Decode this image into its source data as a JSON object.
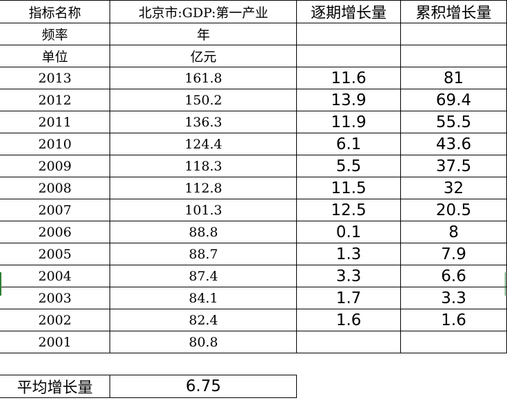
{
  "header": {
    "row1": [
      "指标名称",
      "北京市:GDP:第一产业",
      "逐期增长量",
      "累积增长量"
    ],
    "row2": [
      "频率",
      "年",
      "",
      ""
    ],
    "row3": [
      "单位",
      "亿元",
      "",
      ""
    ]
  },
  "rows": [
    {
      "year": "2013",
      "gdp": "161.8",
      "period": "11.6",
      "cumulative": "81"
    },
    {
      "year": "2012",
      "gdp": "150.2",
      "period": "13.9",
      "cumulative": "69.4"
    },
    {
      "year": "2011",
      "gdp": "136.3",
      "period": "11.9",
      "cumulative": "55.5"
    },
    {
      "year": "2010",
      "gdp": "124.4",
      "period": "6.1",
      "cumulative": "43.6"
    },
    {
      "year": "2009",
      "gdp": "118.3",
      "period": "5.5",
      "cumulative": "37.5"
    },
    {
      "year": "2008",
      "gdp": "112.8",
      "period": "11.5",
      "cumulative": "32"
    },
    {
      "year": "2007",
      "gdp": "101.3",
      "period": "12.5",
      "cumulative": "20.5"
    },
    {
      "year": "2006",
      "gdp": "88.8",
      "period": "0.1",
      "cumulative": "8"
    },
    {
      "year": "2005",
      "gdp": "88.7",
      "period": "1.3",
      "cumulative": "7.9"
    },
    {
      "year": "2004",
      "gdp": "87.4",
      "period": "3.3",
      "cumulative": "6.6"
    },
    {
      "year": "2003",
      "gdp": "84.1",
      "period": "1.7",
      "cumulative": "3.3"
    },
    {
      "year": "2002",
      "gdp": "82.4",
      "period": "1.6",
      "cumulative": "1.6"
    },
    {
      "year": "2001",
      "gdp": "80.8",
      "period": "",
      "cumulative": ""
    }
  ],
  "summary": {
    "label": "平均增长量",
    "value": "6.75"
  }
}
